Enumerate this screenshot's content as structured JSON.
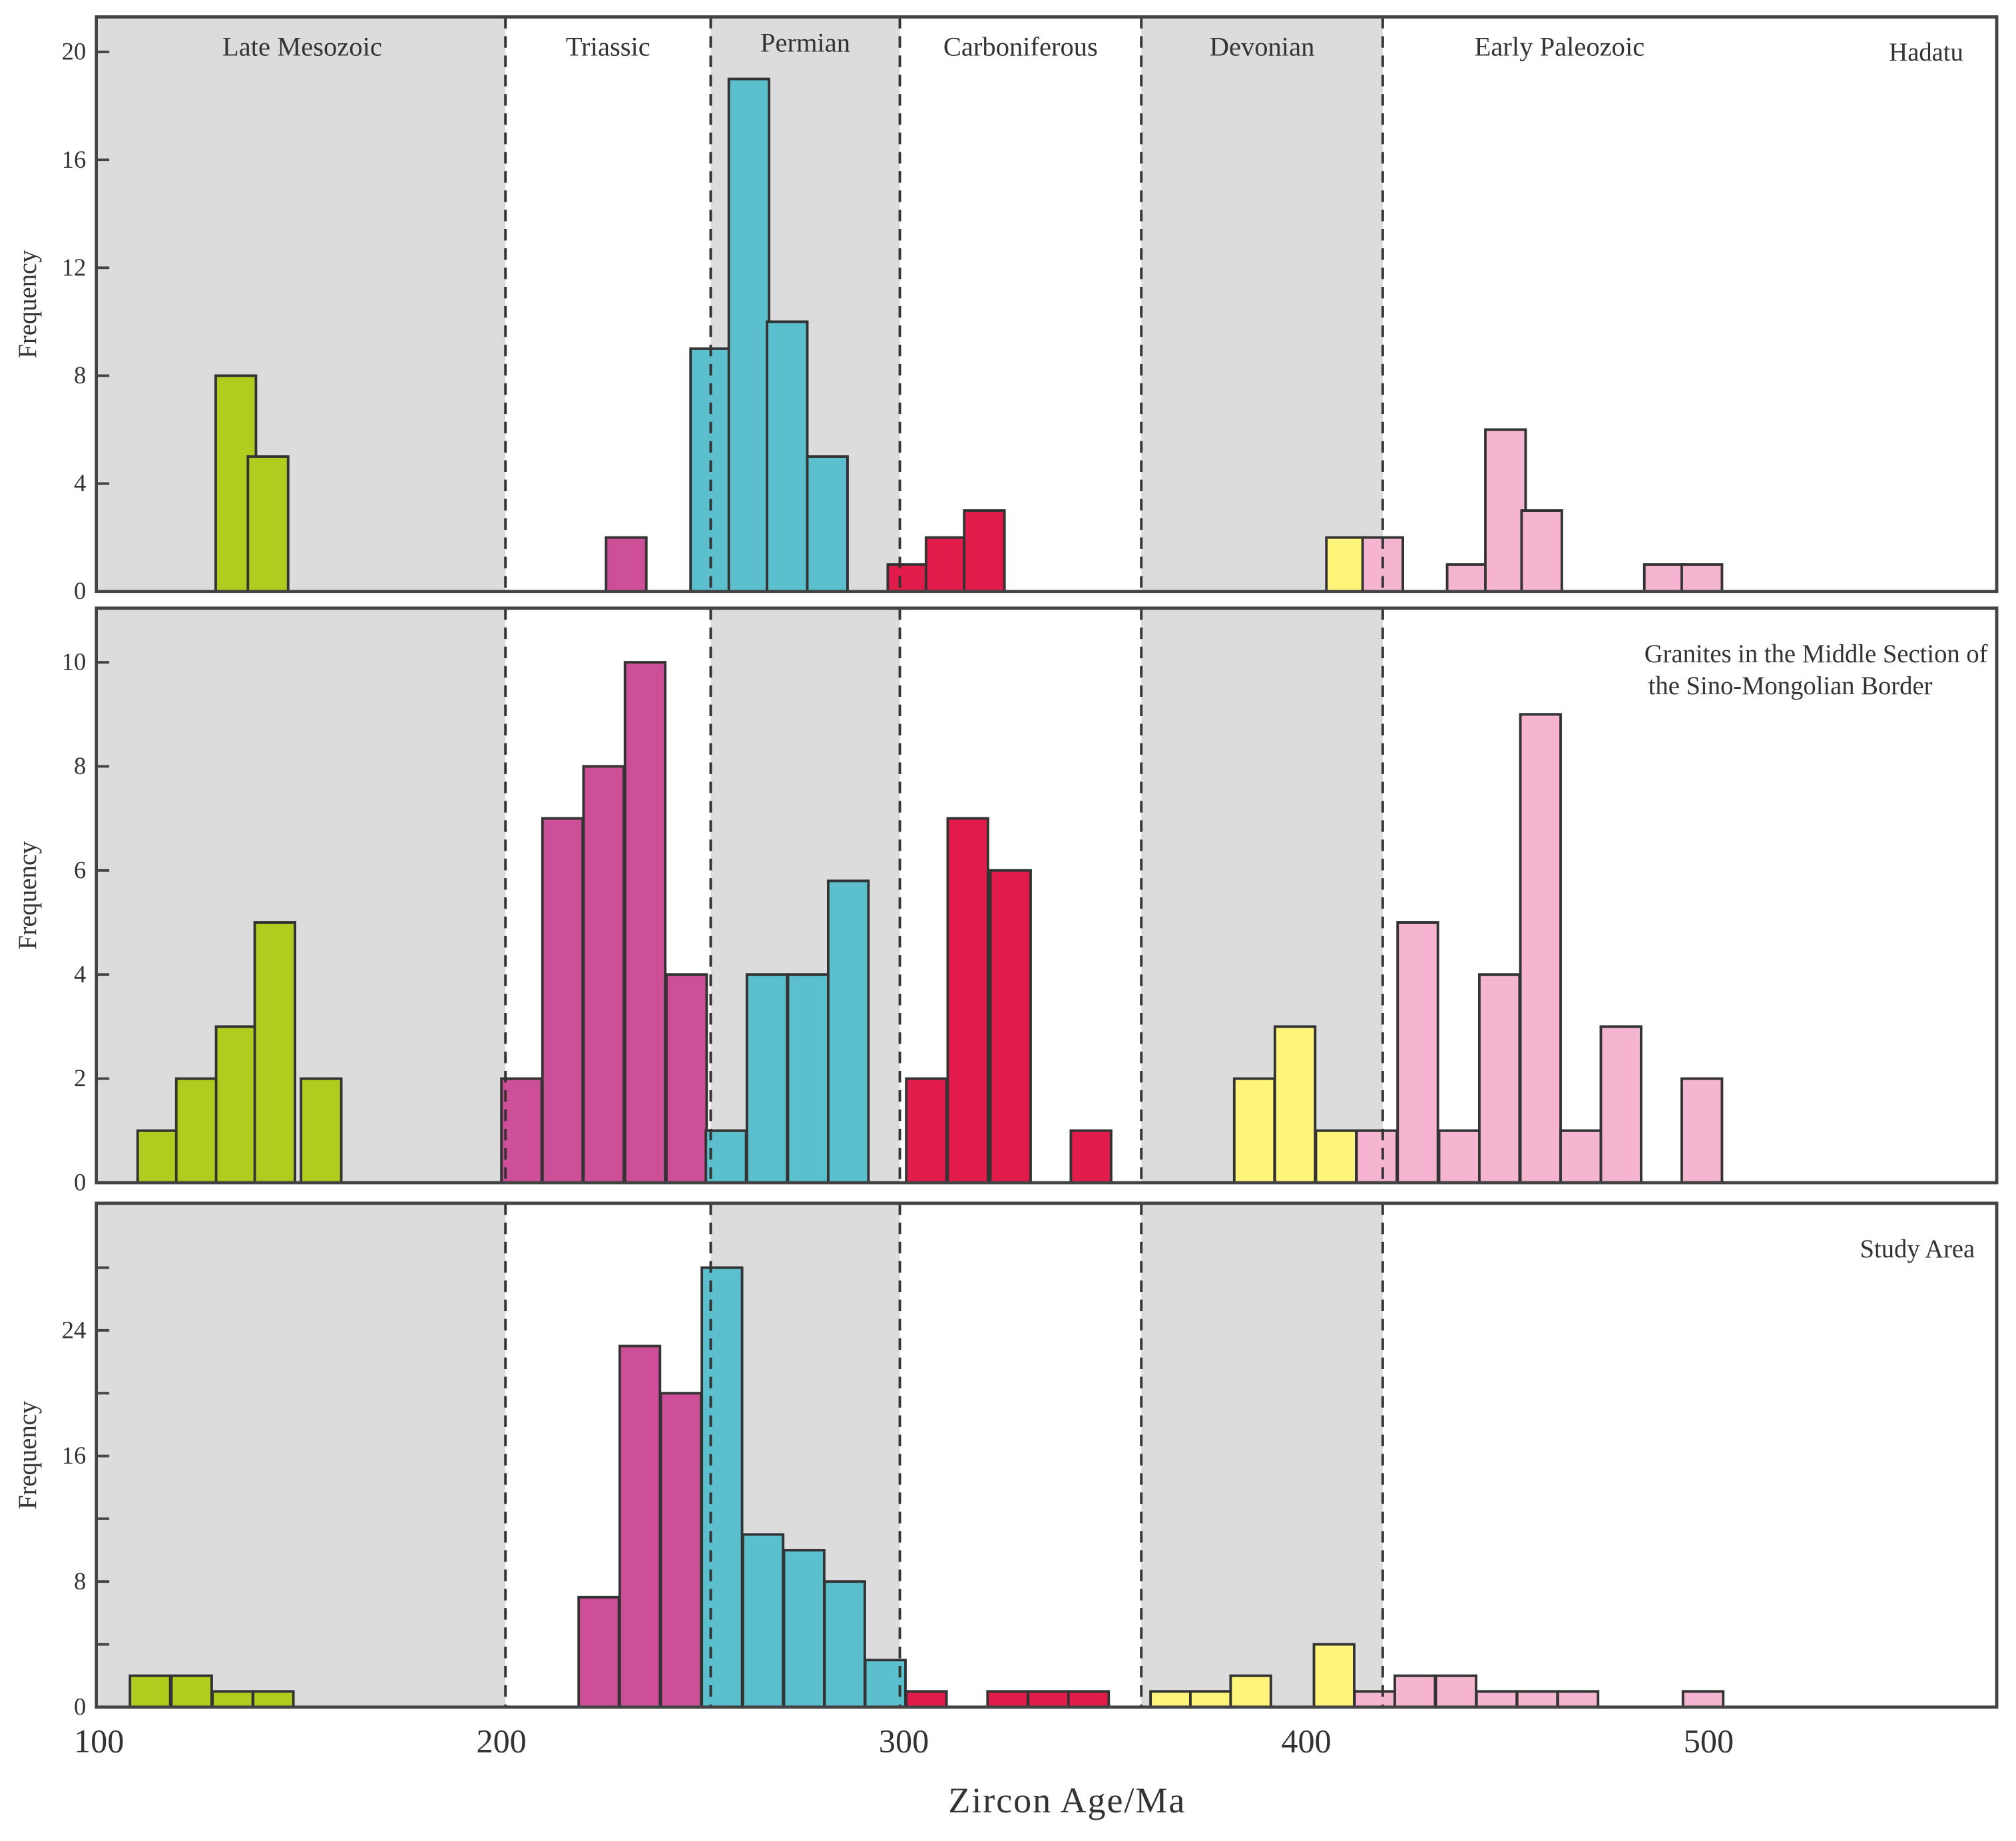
{
  "chart_data": {
    "type": "bar",
    "subtype": "histogram",
    "xlabel": "Zircon Age/Ma",
    "xlim": [
      100,
      572
    ],
    "xticks": [
      100,
      200,
      300,
      400,
      500
    ],
    "bin_width": 10,
    "colors": {
      "late_mesozoic": "#afcd1e",
      "triassic": "#cc4f97",
      "permian": "#5bbfcd",
      "carboniferous": "#e21c4a",
      "devonian": "#fff57a",
      "early_paleozoic": "#f5b4d0",
      "shade": "#dcdcdc",
      "outline": "#333333"
    },
    "periods": [
      {
        "name": "Late Mesozoic",
        "from": 100,
        "to": 201,
        "shaded": true
      },
      {
        "name": "Triassic",
        "from": 201,
        "to": 252,
        "shaded": false
      },
      {
        "name": "Permian",
        "from": 252,
        "to": 299,
        "shaded": true
      },
      {
        "name": "Carboniferous",
        "from": 299,
        "to": 359,
        "shaded": false
      },
      {
        "name": "Devonian",
        "from": 359,
        "to": 419,
        "shaded": true
      },
      {
        "name": "Early Paleozoic",
        "from": 419,
        "to": 572,
        "shaded": false
      }
    ],
    "panels": [
      {
        "title": "Hadatu",
        "ylabel": "Frequency",
        "ylim": [
          0,
          21.3
        ],
        "yticks": [
          0,
          4,
          8,
          12,
          16,
          20
        ],
        "yticklabels": [
          "0",
          "4",
          "8",
          "12",
          "16",
          "20"
        ],
        "bars": [
          {
            "age": 129,
            "count": 8,
            "group": "late_mesozoic"
          },
          {
            "age": 137,
            "count": 5,
            "group": "late_mesozoic"
          },
          {
            "age": 226,
            "count": 2,
            "group": "triassic"
          },
          {
            "age": 247,
            "count": 9,
            "group": "permian"
          },
          {
            "age": 256.5,
            "count": 19,
            "group": "permian"
          },
          {
            "age": 266,
            "count": 10,
            "group": "permian"
          },
          {
            "age": 276,
            "count": 5,
            "group": "permian"
          },
          {
            "age": 296,
            "count": 1,
            "group": "carboniferous"
          },
          {
            "age": 305.5,
            "count": 2,
            "group": "carboniferous"
          },
          {
            "age": 315,
            "count": 3,
            "group": "carboniferous"
          },
          {
            "age": 405,
            "count": 2,
            "group": "devonian"
          },
          {
            "age": 414,
            "count": 2,
            "group": "early_paleozoic"
          },
          {
            "age": 435,
            "count": 1,
            "group": "early_paleozoic"
          },
          {
            "age": 444.5,
            "count": 6,
            "group": "early_paleozoic"
          },
          {
            "age": 453.5,
            "count": 3,
            "group": "early_paleozoic"
          },
          {
            "age": 484,
            "count": 1,
            "group": "early_paleozoic"
          },
          {
            "age": 493.3,
            "count": 1,
            "group": "early_paleozoic"
          }
        ]
      },
      {
        "title": "Granites in the Middle Section of",
        "title2": "the Sino-Mongolian Border",
        "ylabel": "Frequency",
        "ylim": [
          0,
          11.04
        ],
        "yticks": [
          0,
          2,
          4,
          6,
          8,
          10
        ],
        "yticklabels": [
          "0",
          "2",
          "4",
          "6",
          "8",
          "10"
        ],
        "bars": [
          {
            "age": 109.6,
            "count": 1,
            "group": "late_mesozoic"
          },
          {
            "age": 119.2,
            "count": 2,
            "group": "late_mesozoic"
          },
          {
            "age": 129.1,
            "count": 3,
            "group": "late_mesozoic"
          },
          {
            "age": 138.7,
            "count": 5,
            "group": "late_mesozoic"
          },
          {
            "age": 150.2,
            "count": 2,
            "group": "late_mesozoic"
          },
          {
            "age": 200,
            "count": 2,
            "group": "triassic"
          },
          {
            "age": 210.2,
            "count": 7,
            "group": "triassic"
          },
          {
            "age": 220.4,
            "count": 8,
            "group": "triassic"
          },
          {
            "age": 230.7,
            "count": 10,
            "group": "triassic"
          },
          {
            "age": 241,
            "count": 4,
            "group": "triassic"
          },
          {
            "age": 250.8,
            "count": 1,
            "group": "permian"
          },
          {
            "age": 261,
            "count": 4,
            "group": "permian"
          },
          {
            "age": 271.2,
            "count": 4,
            "group": "permian"
          },
          {
            "age": 281.2,
            "count": 5.8,
            "group": "permian"
          },
          {
            "age": 300.6,
            "count": 2,
            "group": "carboniferous"
          },
          {
            "age": 310.9,
            "count": 7,
            "group": "carboniferous"
          },
          {
            "age": 321.5,
            "count": 6,
            "group": "carboniferous"
          },
          {
            "age": 341.5,
            "count": 1,
            "group": "carboniferous"
          },
          {
            "age": 382.1,
            "count": 2,
            "group": "devonian"
          },
          {
            "age": 392.2,
            "count": 3,
            "group": "devonian"
          },
          {
            "age": 402.4,
            "count": 1,
            "group": "devonian"
          },
          {
            "age": 412.5,
            "count": 1,
            "group": "early_paleozoic"
          },
          {
            "age": 422.7,
            "count": 5,
            "group": "early_paleozoic"
          },
          {
            "age": 433,
            "count": 1,
            "group": "early_paleozoic"
          },
          {
            "age": 443,
            "count": 4,
            "group": "early_paleozoic"
          },
          {
            "age": 453.2,
            "count": 9,
            "group": "early_paleozoic"
          },
          {
            "age": 463.2,
            "count": 1,
            "group": "early_paleozoic"
          },
          {
            "age": 473.2,
            "count": 3,
            "group": "early_paleozoic"
          },
          {
            "age": 493.3,
            "count": 2,
            "group": "early_paleozoic"
          }
        ]
      },
      {
        "title": "Study Area",
        "ylabel": "Frequency",
        "ylim": [
          0,
          32.1
        ],
        "yticks": [
          0,
          4,
          8,
          12,
          16,
          20,
          24,
          28
        ],
        "yticklabels": [
          "0",
          "",
          "8",
          "",
          "16",
          "",
          "24",
          ""
        ],
        "bars": [
          {
            "age": 107.7,
            "count": 2,
            "group": "late_mesozoic"
          },
          {
            "age": 118,
            "count": 2,
            "group": "late_mesozoic"
          },
          {
            "age": 128.2,
            "count": 1,
            "group": "late_mesozoic"
          },
          {
            "age": 138.3,
            "count": 1,
            "group": "late_mesozoic"
          },
          {
            "age": 219.2,
            "count": 7,
            "group": "triassic"
          },
          {
            "age": 229.4,
            "count": 23,
            "group": "triassic"
          },
          {
            "age": 239.6,
            "count": 20,
            "group": "triassic"
          },
          {
            "age": 249.8,
            "count": 28,
            "group": "permian"
          },
          {
            "age": 260,
            "count": 11,
            "group": "permian"
          },
          {
            "age": 270.2,
            "count": 10,
            "group": "permian"
          },
          {
            "age": 280.3,
            "count": 8,
            "group": "permian"
          },
          {
            "age": 290.4,
            "count": 3,
            "group": "permian"
          },
          {
            "age": 300.6,
            "count": 1,
            "group": "carboniferous"
          },
          {
            "age": 320.8,
            "count": 1,
            "group": "carboniferous"
          },
          {
            "age": 330.9,
            "count": 1,
            "group": "carboniferous"
          },
          {
            "age": 340.9,
            "count": 1,
            "group": "carboniferous"
          },
          {
            "age": 361.3,
            "count": 1,
            "group": "devonian"
          },
          {
            "age": 371.2,
            "count": 1,
            "group": "devonian"
          },
          {
            "age": 381.2,
            "count": 2,
            "group": "devonian"
          },
          {
            "age": 401.9,
            "count": 4,
            "group": "devonian"
          },
          {
            "age": 412,
            "count": 1,
            "group": "early_paleozoic"
          },
          {
            "age": 422,
            "count": 2,
            "group": "early_paleozoic"
          },
          {
            "age": 432.2,
            "count": 2,
            "group": "early_paleozoic"
          },
          {
            "age": 442.3,
            "count": 1,
            "group": "early_paleozoic"
          },
          {
            "age": 452.4,
            "count": 1,
            "group": "early_paleozoic"
          },
          {
            "age": 462.5,
            "count": 1,
            "group": "early_paleozoic"
          },
          {
            "age": 493.6,
            "count": 1,
            "group": "early_paleozoic"
          }
        ]
      }
    ]
  }
}
